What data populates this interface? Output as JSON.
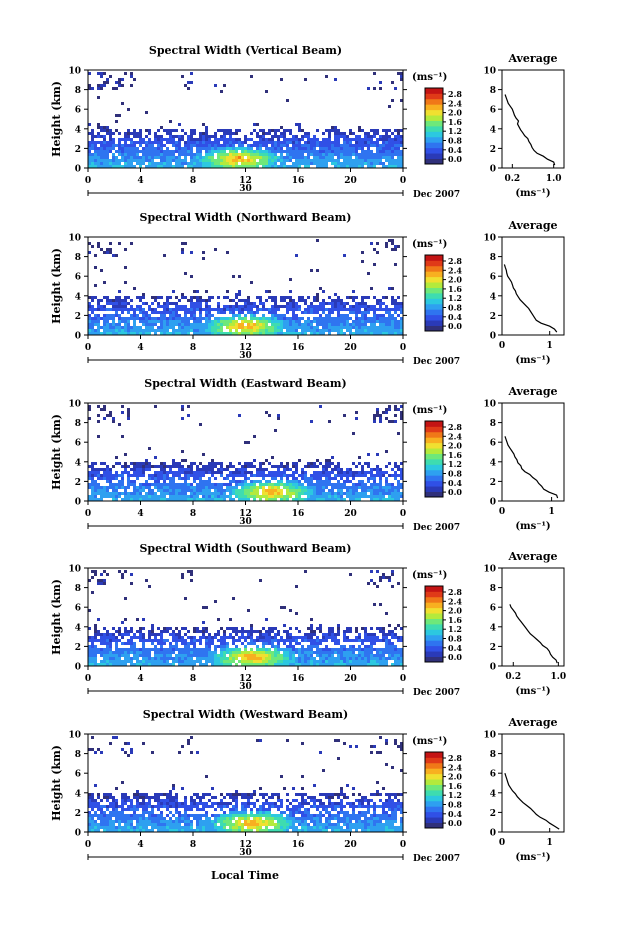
{
  "figure": {
    "x_axis_label": "Local Time",
    "date_label": "Dec 2007",
    "day_label": "30",
    "unit_label": "(ms⁻¹)",
    "y_axis_label": "Height (km)",
    "avg_title": "Average",
    "avg_xlabel": "(ms⁻¹)"
  },
  "colorbar": {
    "ticks": [
      "2.8",
      "2.4",
      "2.0",
      "1.6",
      "1.2",
      "0.8",
      "0.4",
      "0.0"
    ],
    "range": [
      0,
      2.8
    ],
    "colors": [
      "#30307a",
      "#2a3ab8",
      "#3050e6",
      "#2f74f0",
      "#2ea0f0",
      "#2cc8e0",
      "#3edcb0",
      "#6ee87a",
      "#b4ea3c",
      "#f0e030",
      "#f8b020",
      "#f07818",
      "#e03a18",
      "#c41414"
    ]
  },
  "chart_data": [
    {
      "type": "heatmap",
      "title": "Spectral Width (Vertical Beam)",
      "x_ticks": [
        "0",
        "4",
        "8",
        "12",
        "16",
        "20",
        "0"
      ],
      "xlim": [
        0,
        24
      ],
      "y_ticks": [
        "0",
        "2",
        "4",
        "6",
        "8",
        "10"
      ],
      "ylim": [
        0,
        10
      ],
      "profile": {
        "xlim": [
          0,
          1.2
        ],
        "x_ticks": [
          "0.2",
          "1.0"
        ],
        "x_tick_values": [
          0.2,
          1.0
        ],
        "heights": [
          0.3,
          0.6,
          0.9,
          1.2,
          1.5,
          1.8,
          2.1,
          2.4,
          2.7,
          3.0,
          3.3,
          3.6,
          3.9,
          4.2,
          4.5,
          4.8,
          5.1,
          5.4,
          5.7,
          6.0,
          6.3,
          6.6,
          6.9,
          7.2,
          7.5
        ],
        "values": [
          1.02,
          1.0,
          0.88,
          0.8,
          0.68,
          0.62,
          0.58,
          0.56,
          0.52,
          0.5,
          0.44,
          0.4,
          0.36,
          0.33,
          0.3,
          0.32,
          0.27,
          0.24,
          0.22,
          0.2,
          0.16,
          0.12,
          0.1,
          0.08,
          0.06
        ]
      }
    },
    {
      "type": "heatmap",
      "title": "Spectral Width (Northward Beam)",
      "x_ticks": [
        "0",
        "4",
        "8",
        "12",
        "16",
        "20",
        "0"
      ],
      "xlim": [
        0,
        24
      ],
      "y_ticks": [
        "0",
        "2",
        "4",
        "6",
        "8",
        "10"
      ],
      "ylim": [
        0,
        10
      ],
      "profile": {
        "xlim": [
          0,
          1.3
        ],
        "x_ticks": [
          "0",
          "1"
        ],
        "x_tick_values": [
          0,
          1
        ],
        "heights": [
          0.3,
          0.6,
          0.9,
          1.2,
          1.5,
          1.8,
          2.1,
          2.4,
          2.7,
          3.0,
          3.3,
          3.6,
          3.9,
          4.2,
          4.5,
          4.8,
          5.1,
          5.4,
          5.7,
          6.0,
          6.3,
          6.6,
          6.9,
          7.2
        ],
        "values": [
          1.15,
          1.1,
          1.0,
          0.82,
          0.72,
          0.68,
          0.64,
          0.6,
          0.56,
          0.5,
          0.44,
          0.38,
          0.34,
          0.3,
          0.28,
          0.24,
          0.22,
          0.2,
          0.16,
          0.12,
          0.1,
          0.09,
          0.07,
          0.05
        ]
      }
    },
    {
      "type": "heatmap",
      "title": "Spectral Width (Eastward Beam)",
      "x_ticks": [
        "0",
        "4",
        "8",
        "12",
        "16",
        "20",
        "0"
      ],
      "xlim": [
        0,
        24
      ],
      "y_ticks": [
        "0",
        "2",
        "4",
        "6",
        "8",
        "10"
      ],
      "ylim": [
        0,
        10
      ],
      "profile": {
        "xlim": [
          0,
          1.25
        ],
        "x_ticks": [
          "0",
          "1"
        ],
        "x_tick_values": [
          0,
          1
        ],
        "heights": [
          0.3,
          0.6,
          0.9,
          1.2,
          1.5,
          1.8,
          2.1,
          2.4,
          2.7,
          3.0,
          3.3,
          3.6,
          3.9,
          4.2,
          4.5,
          4.8,
          5.1,
          5.4,
          5.7,
          6.0,
          6.3,
          6.6
        ],
        "values": [
          1.12,
          1.1,
          0.95,
          0.84,
          0.8,
          0.74,
          0.7,
          0.62,
          0.56,
          0.46,
          0.4,
          0.38,
          0.32,
          0.3,
          0.26,
          0.24,
          0.2,
          0.16,
          0.12,
          0.1,
          0.08,
          0.06
        ]
      }
    },
    {
      "type": "heatmap",
      "title": "Spectral Width (Southward Beam)",
      "x_ticks": [
        "0",
        "4",
        "8",
        "12",
        "16",
        "20",
        "0"
      ],
      "xlim": [
        0,
        24
      ],
      "y_ticks": [
        "0",
        "2",
        "4",
        "6",
        "8",
        "10"
      ],
      "ylim": [
        0,
        10
      ],
      "profile": {
        "xlim": [
          0,
          1.1
        ],
        "x_ticks": [
          "0.2",
          "1.0"
        ],
        "x_tick_values": [
          0.2,
          1.0
        ],
        "heights": [
          0.3,
          0.6,
          0.9,
          1.2,
          1.5,
          1.8,
          2.1,
          2.4,
          2.7,
          3.0,
          3.3,
          3.6,
          3.9,
          4.2,
          4.5,
          4.8,
          5.1,
          5.4,
          5.7,
          6.0,
          6.3
        ],
        "values": [
          0.98,
          0.96,
          0.9,
          0.86,
          0.84,
          0.8,
          0.72,
          0.68,
          0.62,
          0.56,
          0.5,
          0.46,
          0.42,
          0.38,
          0.34,
          0.3,
          0.26,
          0.24,
          0.2,
          0.16,
          0.14
        ]
      }
    },
    {
      "type": "heatmap",
      "title": "Spectral Width (Westward Beam)",
      "x_ticks": [
        "0",
        "4",
        "8",
        "12",
        "16",
        "20",
        "0"
      ],
      "xlim": [
        0,
        24
      ],
      "y_ticks": [
        "0",
        "2",
        "4",
        "6",
        "8",
        "10"
      ],
      "ylim": [
        0,
        10
      ],
      "profile": {
        "xlim": [
          0,
          1.3
        ],
        "x_ticks": [
          "0",
          "1"
        ],
        "x_tick_values": [
          0,
          1
        ],
        "heights": [
          0.3,
          0.6,
          0.9,
          1.2,
          1.5,
          1.8,
          2.1,
          2.4,
          2.7,
          3.0,
          3.3,
          3.6,
          3.9,
          4.2,
          4.5,
          4.8,
          5.1,
          5.4,
          5.7,
          6.0
        ],
        "values": [
          1.2,
          1.1,
          1.0,
          0.92,
          0.8,
          0.72,
          0.66,
          0.6,
          0.52,
          0.44,
          0.38,
          0.32,
          0.28,
          0.22,
          0.18,
          0.14,
          0.12,
          0.1,
          0.08,
          0.06
        ]
      }
    }
  ]
}
